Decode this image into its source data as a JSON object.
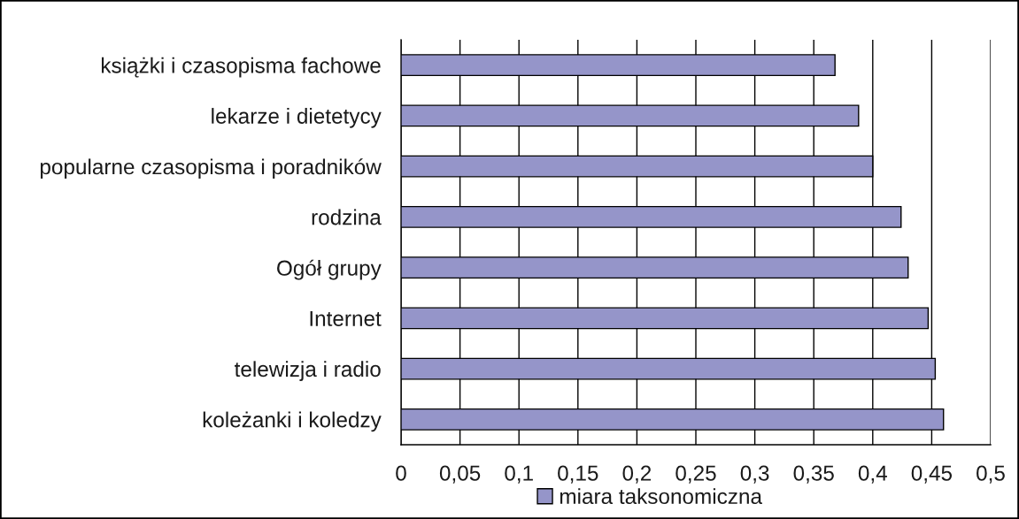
{
  "chart_data": {
    "type": "bar",
    "orientation": "horizontal",
    "categories": [
      "książki i czasopisma fachowe",
      "lekarze i dietetycy",
      "popularne czasopisma i poradników",
      "rodzina",
      "Ogół grupy",
      "Internet",
      "telewizja i radio",
      "koleżanki i koledzy"
    ],
    "series": [
      {
        "name": "miara taksonomiczna",
        "color": "#9595c9",
        "values": [
          0.368,
          0.388,
          0.4,
          0.424,
          0.43,
          0.447,
          0.453,
          0.46
        ]
      }
    ],
    "xlim": [
      0,
      0.5
    ],
    "xticks": [
      0,
      {
        "value": 0.05,
        "label": "0,05"
      },
      {
        "value": 0.1,
        "label": "0,1"
      },
      {
        "value": 0.15,
        "label": "0,15"
      },
      {
        "value": 0.2,
        "label": "0,2"
      },
      {
        "value": 0.25,
        "label": "0,25"
      },
      {
        "value": 0.3,
        "label": "0,3"
      },
      {
        "value": 0.35,
        "label": "0,35"
      },
      {
        "value": 0.4,
        "label": "0,4"
      },
      {
        "value": 0.45,
        "label": "0,45"
      },
      {
        "value": 0.5,
        "label": "0,5"
      }
    ],
    "grid": "x",
    "legend": "bottom"
  }
}
